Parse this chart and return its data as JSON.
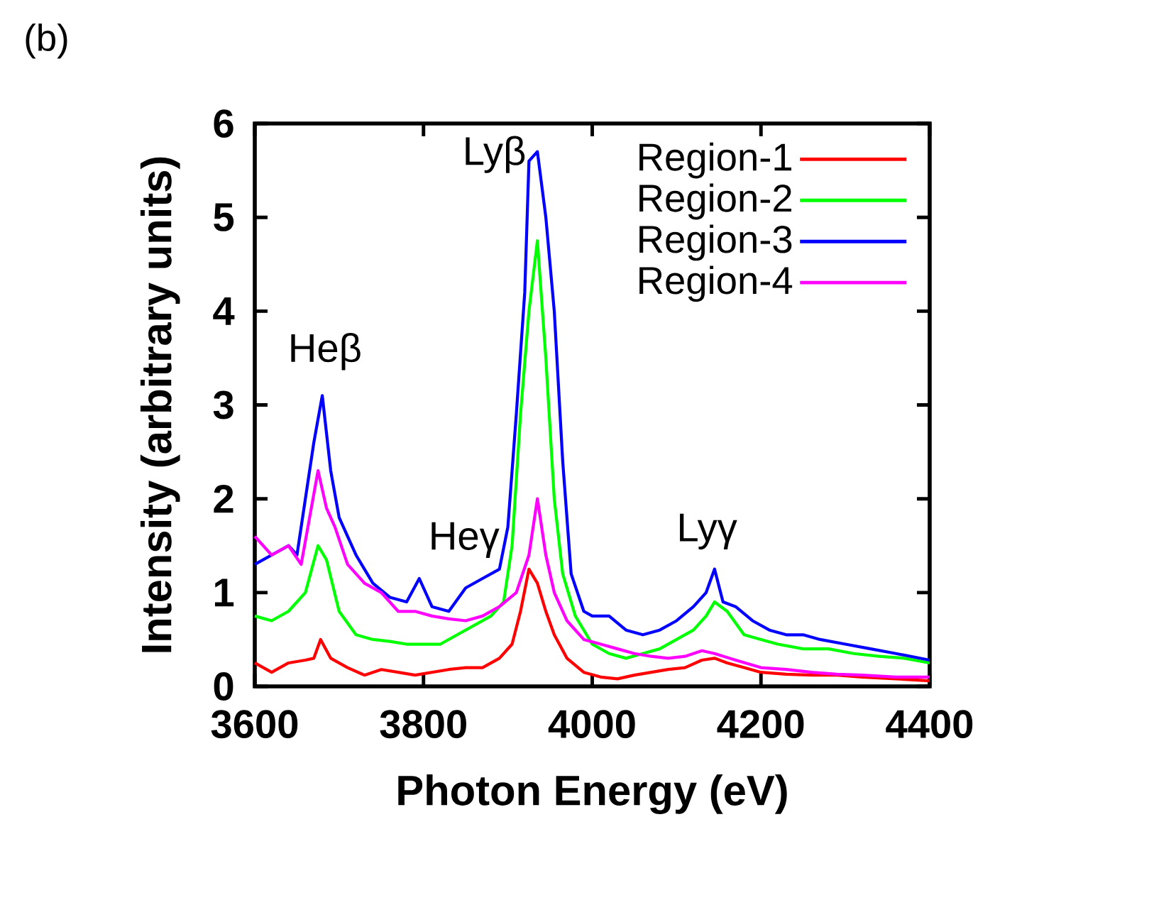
{
  "chart_data": {
    "type": "line",
    "xlabel": "Photon Energy (eV)",
    "ylabel": "Intensity (arbitrary units)",
    "xlim": [
      3600,
      4400
    ],
    "ylim": [
      0,
      6
    ],
    "xticks": [
      3600,
      3800,
      4000,
      4200,
      4400
    ],
    "yticks": [
      0,
      1,
      2,
      3,
      4,
      5,
      6
    ],
    "legend": "top right",
    "line_style": "solid",
    "grid": false,
    "annotations": [
      "(b)",
      "Heβ",
      "Heγ",
      "Lyβ",
      "Lyγ"
    ],
    "series": [
      {
        "name": "Region-1",
        "color": "#ff0000",
        "x": [
          3600,
          3620,
          3640,
          3660,
          3670,
          3678,
          3690,
          3710,
          3730,
          3750,
          3770,
          3790,
          3810,
          3830,
          3850,
          3870,
          3890,
          3905,
          3915,
          3925,
          3935,
          3945,
          3955,
          3970,
          3990,
          4010,
          4030,
          4050,
          4070,
          4090,
          4110,
          4130,
          4145,
          4160,
          4180,
          4200,
          4230,
          4260,
          4290,
          4320,
          4360,
          4400
        ],
        "values": [
          0.25,
          0.15,
          0.25,
          0.28,
          0.3,
          0.5,
          0.3,
          0.2,
          0.12,
          0.18,
          0.15,
          0.12,
          0.15,
          0.18,
          0.2,
          0.2,
          0.3,
          0.45,
          0.8,
          1.25,
          1.1,
          0.8,
          0.55,
          0.3,
          0.15,
          0.1,
          0.08,
          0.12,
          0.15,
          0.18,
          0.2,
          0.28,
          0.3,
          0.25,
          0.2,
          0.15,
          0.13,
          0.12,
          0.12,
          0.1,
          0.08,
          0.06
        ]
      },
      {
        "name": "Region-2",
        "color": "#00ff00",
        "x": [
          3600,
          3620,
          3640,
          3660,
          3675,
          3685,
          3700,
          3720,
          3740,
          3760,
          3780,
          3800,
          3820,
          3840,
          3860,
          3880,
          3895,
          3905,
          3915,
          3925,
          3935,
          3945,
          3955,
          3965,
          3980,
          4000,
          4020,
          4040,
          4060,
          4080,
          4100,
          4120,
          4135,
          4145,
          4160,
          4180,
          4200,
          4220,
          4250,
          4280,
          4310,
          4340,
          4370,
          4400
        ],
        "values": [
          0.75,
          0.7,
          0.8,
          1.0,
          1.5,
          1.35,
          0.8,
          0.55,
          0.5,
          0.48,
          0.45,
          0.45,
          0.45,
          0.55,
          0.65,
          0.75,
          0.9,
          1.5,
          2.9,
          4.0,
          4.75,
          3.5,
          2.0,
          1.2,
          0.75,
          0.45,
          0.35,
          0.3,
          0.35,
          0.4,
          0.5,
          0.6,
          0.75,
          0.9,
          0.8,
          0.55,
          0.5,
          0.45,
          0.4,
          0.4,
          0.35,
          0.32,
          0.3,
          0.25
        ]
      },
      {
        "name": "Region-3",
        "color": "#0000ff",
        "x": [
          3600,
          3620,
          3640,
          3650,
          3660,
          3670,
          3680,
          3690,
          3700,
          3720,
          3740,
          3760,
          3780,
          3795,
          3810,
          3830,
          3850,
          3870,
          3890,
          3900,
          3910,
          3920,
          3925,
          3935,
          3945,
          3955,
          3965,
          3975,
          3990,
          4000,
          4020,
          4040,
          4060,
          4080,
          4100,
          4120,
          4135,
          4145,
          4155,
          4170,
          4190,
          4210,
          4230,
          4250,
          4270,
          4300,
          4330,
          4360,
          4400
        ],
        "values": [
          1.3,
          1.4,
          1.5,
          1.4,
          2.0,
          2.6,
          3.1,
          2.3,
          1.8,
          1.4,
          1.1,
          0.95,
          0.9,
          1.15,
          0.85,
          0.8,
          1.05,
          1.15,
          1.25,
          1.7,
          2.9,
          4.2,
          5.6,
          5.7,
          5.0,
          4.0,
          2.4,
          1.2,
          0.8,
          0.75,
          0.75,
          0.6,
          0.55,
          0.6,
          0.7,
          0.85,
          1.0,
          1.25,
          0.9,
          0.85,
          0.7,
          0.6,
          0.55,
          0.55,
          0.5,
          0.45,
          0.4,
          0.35,
          0.28
        ]
      },
      {
        "name": "Region-4",
        "color": "#ff00ff",
        "x": [
          3600,
          3620,
          3640,
          3655,
          3665,
          3675,
          3685,
          3695,
          3710,
          3730,
          3750,
          3770,
          3790,
          3810,
          3830,
          3850,
          3870,
          3890,
          3910,
          3925,
          3935,
          3945,
          3955,
          3970,
          3990,
          4010,
          4030,
          4050,
          4070,
          4090,
          4110,
          4130,
          4145,
          4170,
          4200,
          4230,
          4260,
          4290,
          4320,
          4360,
          4400
        ],
        "values": [
          1.6,
          1.4,
          1.5,
          1.3,
          1.8,
          2.3,
          1.9,
          1.7,
          1.3,
          1.1,
          1.0,
          0.8,
          0.8,
          0.75,
          0.72,
          0.7,
          0.75,
          0.85,
          1.0,
          1.4,
          2.0,
          1.4,
          1.0,
          0.7,
          0.5,
          0.45,
          0.4,
          0.35,
          0.32,
          0.3,
          0.32,
          0.38,
          0.35,
          0.28,
          0.2,
          0.18,
          0.15,
          0.13,
          0.12,
          0.1,
          0.1
        ]
      }
    ]
  }
}
